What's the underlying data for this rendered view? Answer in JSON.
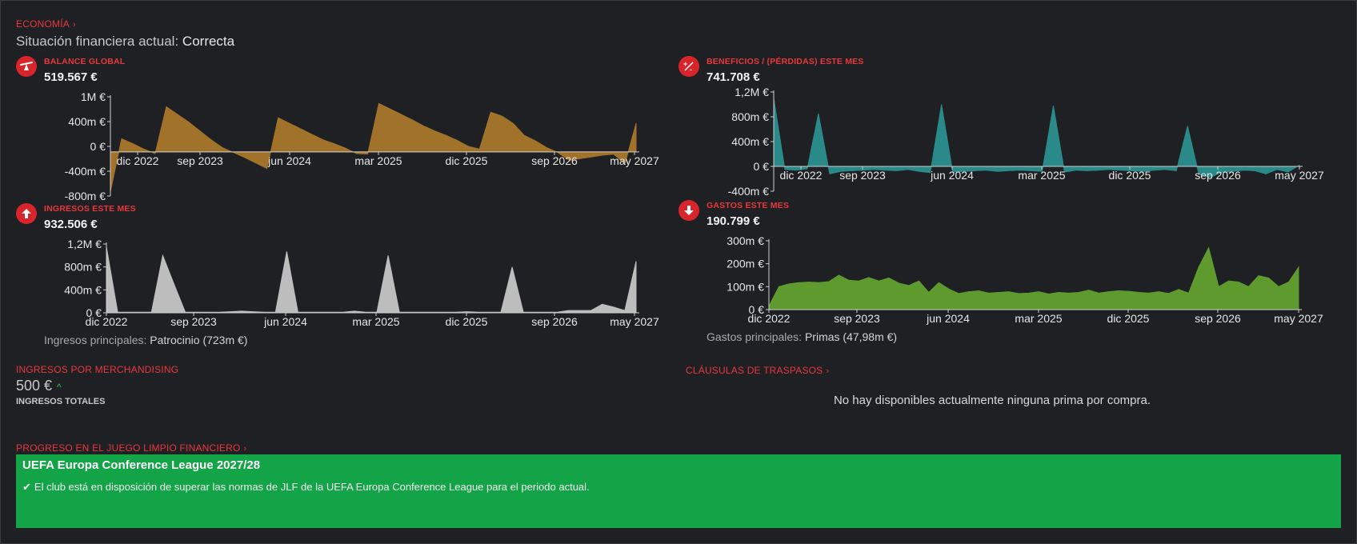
{
  "header": {
    "section_link": "ECONOMÍA",
    "status_label": "Situación financiera actual:",
    "status_value": "Correcta"
  },
  "charts": {
    "balance": {
      "title": "BALANCE GLOBAL",
      "value": "519.567 €",
      "icon": "balance-scale-icon",
      "color": "#a0722a"
    },
    "profit": {
      "title": "BENEFICIOS / (PÉRDIDAS) ESTE MES",
      "value": "741.708 €",
      "icon": "plus-minus-icon",
      "color": "#2a8a8a"
    },
    "income": {
      "title": "INGRESOS ESTE MES",
      "value": "932.506 €",
      "icon": "arrow-up-icon",
      "color": "#bdbdbd",
      "note_label": "Ingresos principales:",
      "note_value": "Patrocinio (723m €)"
    },
    "expenses": {
      "title": "GASTOS ESTE MES",
      "value": "190.799 €",
      "icon": "arrow-down-icon",
      "color": "#5f9a2f",
      "note_label": "Gastos principales:",
      "note_value": "Primas (47,98m €)"
    }
  },
  "chart_data": [
    {
      "type": "area",
      "title": "BALANCE GLOBAL",
      "x_ticks": [
        "dic 2022",
        "sep 2023",
        "jun 2024",
        "mar 2025",
        "dic 2025",
        "sep 2026",
        "may 2027"
      ],
      "y_ticks": [
        "1M €",
        "400m €",
        "0 €",
        "-400m €",
        "-800m €"
      ],
      "ylim": [
        -800000,
        1000000
      ],
      "series": [
        {
          "values": [
            -720000,
            240000,
            150000,
            50000,
            -30000,
            820000,
            680000,
            540000,
            380000,
            220000,
            80000,
            -10000,
            -100000,
            -200000,
            -300000,
            620000,
            520000,
            420000,
            320000,
            220000,
            150000,
            70000,
            -30000,
            -40000,
            880000,
            780000,
            680000,
            580000,
            470000,
            380000,
            300000,
            210000,
            100000,
            50000,
            720000,
            650000,
            520000,
            300000,
            200000,
            80000,
            -10000,
            -150000,
            -120000,
            -90000,
            -60000,
            -40000,
            -220000,
            520000
          ]
        }
      ]
    },
    {
      "type": "area",
      "title": "BENEFICIOS / (PÉRDIDAS) ESTE MES",
      "x_ticks": [
        "dic 2022",
        "sep 2023",
        "jun 2024",
        "mar 2025",
        "dic 2025",
        "sep 2026",
        "may 2027"
      ],
      "y_ticks": [
        "1,2M €",
        "800m €",
        "400m €",
        "0 €",
        "-400m €"
      ],
      "ylim": [
        -400000,
        1200000
      ],
      "series": [
        {
          "values": [
            1100000,
            -50000,
            -60000,
            -40000,
            850000,
            -120000,
            -80000,
            -70000,
            -60000,
            -50000,
            -60000,
            -70000,
            -50000,
            -80000,
            -100000,
            1000000,
            -90000,
            -80000,
            -70000,
            -60000,
            -80000,
            -70000,
            -60000,
            -70000,
            -80000,
            980000,
            -90000,
            -60000,
            -70000,
            -60000,
            -50000,
            -60000,
            -70000,
            -80000,
            -60000,
            -50000,
            -70000,
            650000,
            -120000,
            -180000,
            -100000,
            -80000,
            -60000,
            -70000,
            -120000,
            -50000,
            -90000,
            20000
          ]
        }
      ]
    },
    {
      "type": "area",
      "title": "INGRESOS ESTE MES",
      "x_ticks": [
        "dic 2022",
        "sep 2023",
        "jun 2024",
        "mar 2025",
        "dic 2025",
        "sep 2026",
        "may 2027"
      ],
      "y_ticks": [
        "1,2M €",
        "800m €",
        "400m €",
        "0 €"
      ],
      "ylim": [
        0,
        1200000
      ],
      "series": [
        {
          "values": [
            1150000,
            10000,
            10000,
            10000,
            10000,
            1000000,
            500000,
            10000,
            10000,
            10000,
            10000,
            20000,
            30000,
            20000,
            10000,
            10000,
            1070000,
            10000,
            10000,
            10000,
            10000,
            10000,
            30000,
            10000,
            10000,
            1000000,
            10000,
            10000,
            10000,
            10000,
            10000,
            10000,
            20000,
            10000,
            10000,
            10000,
            800000,
            10000,
            10000,
            10000,
            10000,
            40000,
            40000,
            40000,
            150000,
            100000,
            40000,
            900000
          ]
        }
      ]
    },
    {
      "type": "area",
      "title": "GASTOS ESTE MES",
      "x_ticks": [
        "dic 2022",
        "sep 2023",
        "jun 2024",
        "mar 2025",
        "dic 2025",
        "sep 2026",
        "may 2027"
      ],
      "y_ticks": [
        "300m €",
        "200m €",
        "100m €",
        "0 €"
      ],
      "ylim": [
        0,
        300000
      ],
      "series": [
        {
          "values": [
            15000,
            100000,
            112000,
            118000,
            120000,
            118000,
            122000,
            150000,
            128000,
            125000,
            140000,
            125000,
            138000,
            115000,
            105000,
            125000,
            75000,
            118000,
            90000,
            70000,
            78000,
            82000,
            72000,
            75000,
            78000,
            70000,
            72000,
            78000,
            68000,
            75000,
            72000,
            75000,
            85000,
            72000,
            78000,
            82000,
            80000,
            75000,
            72000,
            78000,
            70000,
            88000,
            72000,
            185000,
            270000,
            100000,
            125000,
            120000,
            100000,
            148000,
            138000,
            100000,
            120000,
            185000
          ]
        }
      ]
    }
  ],
  "merch": {
    "link": "INGRESOS POR MERCHANDISING",
    "value": "500 €",
    "trend": "^",
    "label": "INGRESOS TOTALES"
  },
  "transfers": {
    "link": "CLÁUSULAS DE TRASPASOS",
    "empty_text": "No hay disponibles actualmente ninguna prima por compra."
  },
  "ffp": {
    "link": "PROGRESO EN EL JUEGO LIMPIO FINANCIERO",
    "title": "UEFA Europa Conference League 2027/28",
    "check": "✔",
    "message": "El club está en disposición de superar las normas de JLF de la UEFA Europa Conference League para el periodo actual."
  }
}
